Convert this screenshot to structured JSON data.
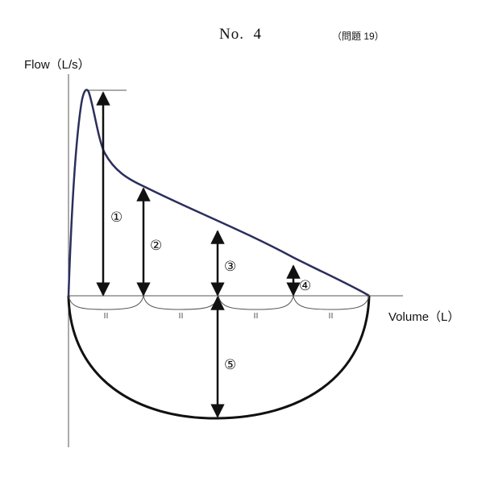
{
  "header": {
    "number_label": "No.",
    "number_value": "4",
    "question_ref": "（問題 19）"
  },
  "axes": {
    "y_label": "Flow（L/s）",
    "x_label": "Volume（L）"
  },
  "markers": [
    "①",
    "②",
    "③",
    "④",
    "⑤"
  ],
  "equal_mark": "=",
  "colors": {
    "expiratory_curve": "#2b2f5c",
    "inspiratory_curve": "#111111",
    "axes": "#555555",
    "arrows": "#111111"
  }
}
